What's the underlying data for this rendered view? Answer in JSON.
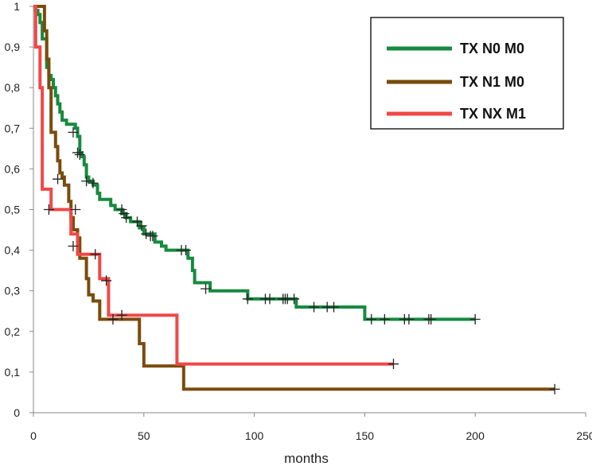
{
  "chart_data": {
    "type": "line",
    "title": "",
    "xlabel": "months",
    "ylabel": "",
    "xlim": [
      0,
      250
    ],
    "ylim": [
      0,
      1
    ],
    "x_ticks": [
      "0",
      "50",
      "100",
      "150",
      "200",
      "250"
    ],
    "y_ticks": [
      "0",
      "0,1",
      "0,2",
      "0,3",
      "0,4",
      "0,5",
      "0,6",
      "0,7",
      "0,8",
      "0,9",
      "1"
    ],
    "grid": false,
    "legend_position": "top-right",
    "censor_color": "#222222",
    "series": [
      {
        "name": "TX N0 M0",
        "color": "#168a3e",
        "steps": [
          [
            0,
            1
          ],
          [
            1,
            0.99
          ],
          [
            2,
            0.98
          ],
          [
            3,
            0.96
          ],
          [
            4,
            0.92
          ],
          [
            6,
            0.85
          ],
          [
            7,
            0.83
          ],
          [
            8,
            0.82
          ],
          [
            9,
            0.8
          ],
          [
            10,
            0.78
          ],
          [
            11,
            0.76
          ],
          [
            12,
            0.74
          ],
          [
            13,
            0.72
          ],
          [
            15,
            0.71
          ],
          [
            19,
            0.7
          ],
          [
            20,
            0.68
          ],
          [
            21,
            0.64
          ],
          [
            22,
            0.63
          ],
          [
            23,
            0.61
          ],
          [
            24,
            0.58
          ],
          [
            25,
            0.57
          ],
          [
            27,
            0.56
          ],
          [
            29,
            0.54
          ],
          [
            30,
            0.525
          ],
          [
            35,
            0.51
          ],
          [
            37,
            0.5
          ],
          [
            40,
            0.49
          ],
          [
            42,
            0.48
          ],
          [
            44,
            0.47
          ],
          [
            48,
            0.455
          ],
          [
            50,
            0.44
          ],
          [
            55,
            0.42
          ],
          [
            58,
            0.41
          ],
          [
            60,
            0.4
          ],
          [
            70,
            0.38
          ],
          [
            72,
            0.35
          ],
          [
            73,
            0.32
          ],
          [
            80,
            0.3
          ],
          [
            97,
            0.28
          ],
          [
            119,
            0.26
          ],
          [
            150,
            0.23
          ],
          [
            200,
            0.23
          ]
        ],
        "censored": [
          [
            18,
            0.69
          ],
          [
            20,
            0.64
          ],
          [
            21,
            0.635
          ],
          [
            24,
            0.57
          ],
          [
            27,
            0.565
          ],
          [
            40,
            0.5
          ],
          [
            41,
            0.49
          ],
          [
            42,
            0.48
          ],
          [
            47,
            0.47
          ],
          [
            49,
            0.46
          ],
          [
            51,
            0.44
          ],
          [
            53,
            0.435
          ],
          [
            54,
            0.435
          ],
          [
            67,
            0.4
          ],
          [
            69,
            0.4
          ],
          [
            78,
            0.305
          ],
          [
            97,
            0.28
          ],
          [
            105,
            0.28
          ],
          [
            107,
            0.28
          ],
          [
            113,
            0.28
          ],
          [
            114,
            0.28
          ],
          [
            115,
            0.28
          ],
          [
            118,
            0.28
          ],
          [
            127,
            0.26
          ],
          [
            133,
            0.26
          ],
          [
            136,
            0.26
          ],
          [
            153,
            0.23
          ],
          [
            159,
            0.23
          ],
          [
            168,
            0.23
          ],
          [
            170,
            0.23
          ],
          [
            179,
            0.23
          ],
          [
            180,
            0.23
          ],
          [
            200,
            0.23
          ]
        ]
      },
      {
        "name": "TX N1 M0",
        "color": "#7a4b0c",
        "steps": [
          [
            0,
            1
          ],
          [
            5,
            0.94
          ],
          [
            6,
            0.87
          ],
          [
            7,
            0.8
          ],
          [
            8,
            0.69
          ],
          [
            10,
            0.655
          ],
          [
            11,
            0.62
          ],
          [
            12,
            0.59
          ],
          [
            13,
            0.58
          ],
          [
            14,
            0.56
          ],
          [
            16,
            0.52
          ],
          [
            17,
            0.48
          ],
          [
            18,
            0.45
          ],
          [
            20,
            0.43
          ],
          [
            21,
            0.38
          ],
          [
            24,
            0.33
          ],
          [
            25,
            0.29
          ],
          [
            27,
            0.275
          ],
          [
            30,
            0.23
          ],
          [
            48,
            0.17
          ],
          [
            50,
            0.115
          ],
          [
            68,
            0.058
          ],
          [
            236,
            0.058
          ]
        ],
        "censored": [
          [
            11,
            0.575
          ],
          [
            18,
            0.41
          ],
          [
            36,
            0.23
          ],
          [
            236,
            0.058
          ]
        ]
      },
      {
        "name": "TX NX M1",
        "color": "#f04848",
        "steps": [
          [
            0,
            1
          ],
          [
            1,
            0.9
          ],
          [
            3,
            0.8
          ],
          [
            4,
            0.55
          ],
          [
            5,
            0.55
          ],
          [
            8,
            0.5
          ],
          [
            10,
            0.5
          ],
          [
            15,
            0.5
          ],
          [
            17,
            0.44
          ],
          [
            19,
            0.44
          ],
          [
            20,
            0.39
          ],
          [
            29,
            0.39
          ],
          [
            30,
            0.33
          ],
          [
            34,
            0.24
          ],
          [
            41,
            0.24
          ],
          [
            65,
            0.12
          ],
          [
            163,
            0.12
          ]
        ],
        "censored": [
          [
            7,
            0.5
          ],
          [
            19,
            0.5
          ],
          [
            28,
            0.39
          ],
          [
            33,
            0.325
          ],
          [
            40,
            0.24
          ],
          [
            163,
            0.12
          ]
        ]
      }
    ]
  }
}
